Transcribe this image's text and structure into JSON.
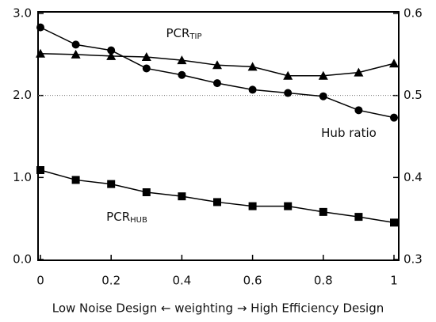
{
  "chart_data": {
    "type": "line",
    "xlabel": "Low Noise Design ← weighting → High Efficiency Design",
    "x": [
      0,
      0.1,
      0.2,
      0.3,
      0.4,
      0.5,
      0.6,
      0.7,
      0.8,
      0.9,
      1
    ],
    "xlim": [
      0,
      1
    ],
    "xticks": [
      0,
      0.2,
      0.4,
      0.6,
      0.8,
      1
    ],
    "ylim": [
      0,
      3
    ],
    "yticks": [
      {
        "value": 0,
        "label": "0.0"
      },
      {
        "value": 1,
        "label": "1.0"
      },
      {
        "value": 2,
        "label": "2.0"
      },
      {
        "value": 3,
        "label": "3.0"
      }
    ],
    "y2lim": [
      0.3,
      0.6
    ],
    "y2ticks": [
      0.3,
      0.4,
      0.5,
      0.6
    ],
    "reference_line": 2,
    "series": [
      {
        "name": "PCR",
        "name_subscript": "TIP",
        "color": "#000000",
        "marker": "triangle",
        "values": [
          2.51,
          2.5,
          2.48,
          2.47,
          2.43,
          2.37,
          2.35,
          2.24,
          2.24,
          2.28,
          2.39
        ]
      },
      {
        "name": "Hub ratio",
        "color": "#000000",
        "marker": "circle",
        "axis": "y2",
        "values": [
          0.583,
          0.562,
          0.555,
          0.533,
          0.525,
          0.515,
          0.507,
          0.503,
          0.499,
          0.482,
          0.473
        ]
      },
      {
        "name": "PCR",
        "name_subscript": "HUB",
        "color": "#000000",
        "marker": "square",
        "values": [
          1.09,
          0.97,
          0.92,
          0.82,
          0.77,
          0.7,
          0.65,
          0.65,
          0.58,
          0.52,
          0.45
        ]
      }
    ]
  }
}
